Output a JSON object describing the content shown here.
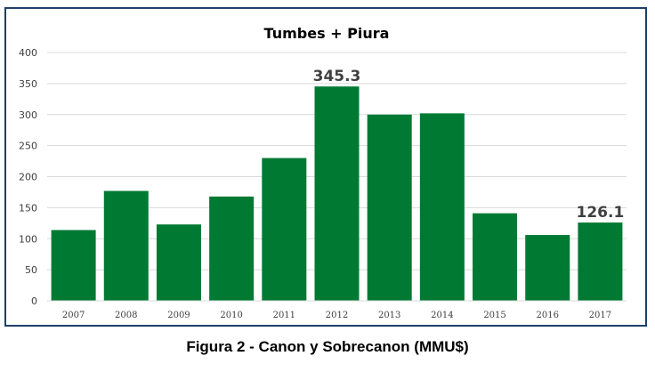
{
  "chart_data": {
    "type": "bar",
    "title": "Tumbes + Piura",
    "categories": [
      "2007",
      "2008",
      "2009",
      "2010",
      "2011",
      "2012",
      "2013",
      "2014",
      "2015",
      "2016",
      "2017"
    ],
    "values": [
      114,
      177,
      123,
      168,
      230,
      345.3,
      300,
      302,
      141,
      106,
      126.1
    ],
    "data_labels": [
      {
        "index": 5,
        "text": "345.3"
      },
      {
        "index": 10,
        "text": "126.1"
      }
    ],
    "ylim": [
      0,
      400
    ],
    "yticks": [
      0,
      50,
      100,
      150,
      200,
      250,
      300,
      350,
      400
    ],
    "grid": true,
    "xlabel": "",
    "ylabel": "",
    "bar_color": "#007a33"
  },
  "caption": "Figura 2 - Canon y Sobrecanon (MMU$)"
}
